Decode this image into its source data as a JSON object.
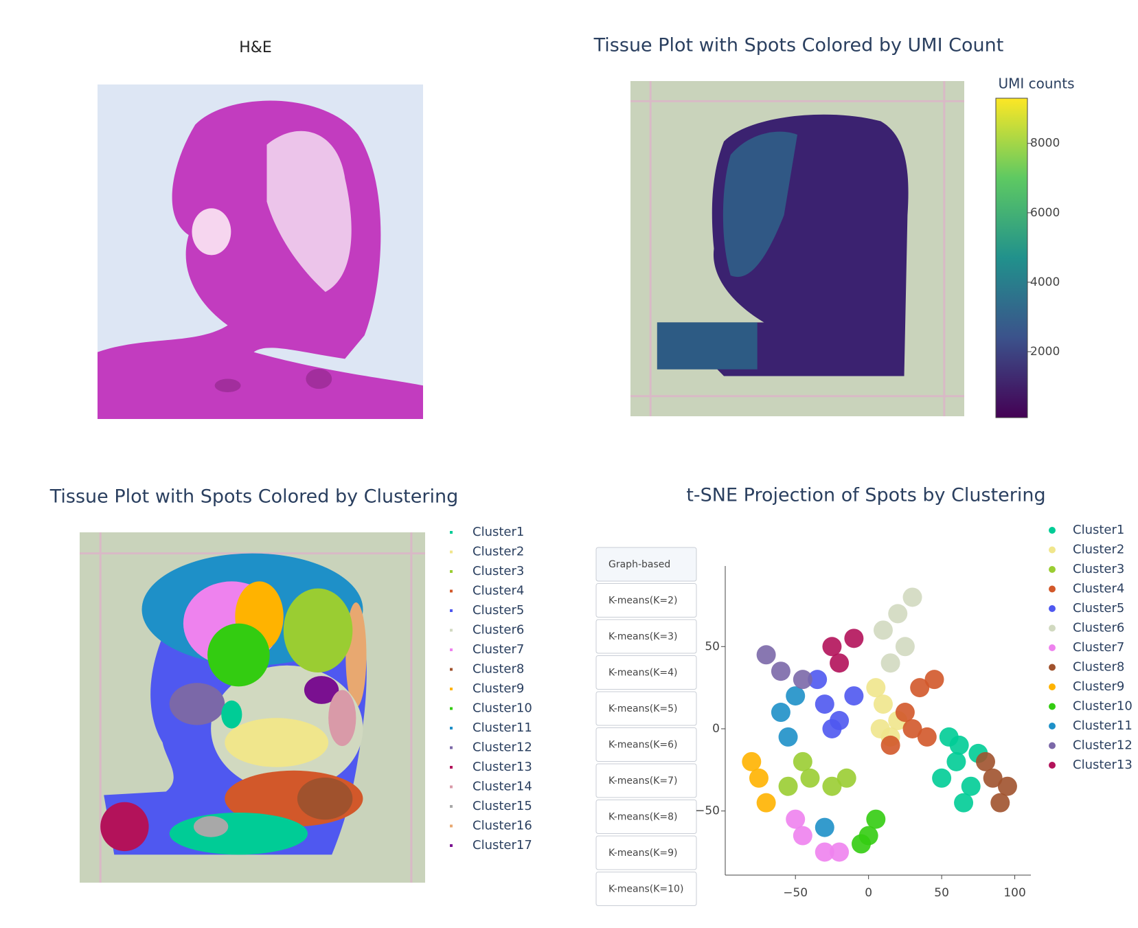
{
  "he_panel": {
    "title": "H&E"
  },
  "umi_panel": {
    "title": "Tissue Plot with Spots Colored by UMI Count",
    "colorbar": {
      "title": "UMI counts",
      "lim": [
        100,
        9300
      ],
      "ticks": [
        2000,
        4000,
        6000,
        8000
      ]
    }
  },
  "cluster_panel": {
    "title": "Tissue Plot with Spots Colored by Clustering",
    "legend": [
      {
        "name": "Cluster1",
        "color": "#00cc96"
      },
      {
        "name": "Cluster2",
        "color": "#f0e68c"
      },
      {
        "name": "Cluster3",
        "color": "#9acd32"
      },
      {
        "name": "Cluster4",
        "color": "#d2582a"
      },
      {
        "name": "Cluster5",
        "color": "#4f58f0"
      },
      {
        "name": "Cluster6",
        "color": "#d1d9c0"
      },
      {
        "name": "Cluster7",
        "color": "#ee82ee"
      },
      {
        "name": "Cluster8",
        "color": "#a0522d"
      },
      {
        "name": "Cluster9",
        "color": "#ffb300"
      },
      {
        "name": "Cluster10",
        "color": "#33cc11"
      },
      {
        "name": "Cluster11",
        "color": "#1e90c8"
      },
      {
        "name": "Cluster12",
        "color": "#7b68a8"
      },
      {
        "name": "Cluster13",
        "color": "#b3125a"
      },
      {
        "name": "Cluster14",
        "color": "#d99aa8"
      },
      {
        "name": "Cluster15",
        "color": "#a8a8a8"
      },
      {
        "name": "Cluster16",
        "color": "#e8a870"
      },
      {
        "name": "Cluster17",
        "color": "#7a1090"
      }
    ]
  },
  "tsne_panel": {
    "title": "t-SNE Projection of Spots by Clustering",
    "buttons": [
      "Graph-based",
      "K-means(K=2)",
      "K-means(K=3)",
      "K-means(K=4)",
      "K-means(K=5)",
      "K-means(K=6)",
      "K-means(K=7)",
      "K-means(K=8)",
      "K-means(K=9)",
      "K-means(K=10)"
    ],
    "chart": {
      "type": "scatter",
      "xlim": [
        -98,
        111
      ],
      "ylim": [
        -89,
        99
      ],
      "xticks": [
        {
          "value": -50,
          "label": "−50"
        },
        0,
        50,
        100
      ],
      "yticks": [
        {
          "value": -50,
          "label": "−50"
        },
        0,
        50
      ],
      "series": [
        {
          "name": "Cluster1",
          "color": "#00cc96",
          "x": [
            60,
            70,
            55,
            75,
            65,
            50,
            62
          ],
          "y": [
            -20,
            -35,
            -5,
            -15,
            -45,
            -30,
            -10
          ]
        },
        {
          "name": "Cluster2",
          "color": "#f0e68c",
          "x": [
            10,
            20,
            5,
            15,
            8
          ],
          "y": [
            15,
            5,
            25,
            -5,
            0
          ]
        },
        {
          "name": "Cluster3",
          "color": "#9acd32",
          "x": [
            -40,
            -25,
            -55,
            -15,
            -45
          ],
          "y": [
            -30,
            -35,
            -35,
            -30,
            -20
          ]
        },
        {
          "name": "Cluster4",
          "color": "#d2582a",
          "x": [
            25,
            35,
            40,
            15,
            45,
            30
          ],
          "y": [
            10,
            25,
            -5,
            -10,
            30,
            0
          ]
        },
        {
          "name": "Cluster5",
          "color": "#4f58f0",
          "x": [
            -30,
            -20,
            -35,
            -10,
            -25
          ],
          "y": [
            15,
            5,
            30,
            20,
            0
          ]
        },
        {
          "name": "Cluster6",
          "color": "#d1d9c0",
          "x": [
            20,
            25,
            10,
            30,
            15
          ],
          "y": [
            70,
            50,
            60,
            80,
            40
          ]
        },
        {
          "name": "Cluster7",
          "color": "#ee82ee",
          "x": [
            -45,
            -30,
            -50,
            -20
          ],
          "y": [
            -65,
            -75,
            -55,
            -75
          ]
        },
        {
          "name": "Cluster8",
          "color": "#a0522d",
          "x": [
            85,
            90,
            80,
            95
          ],
          "y": [
            -30,
            -45,
            -20,
            -35
          ]
        },
        {
          "name": "Cluster9",
          "color": "#ffb300",
          "x": [
            -75,
            -70,
            -80
          ],
          "y": [
            -30,
            -45,
            -20
          ]
        },
        {
          "name": "Cluster10",
          "color": "#33cc11",
          "x": [
            0,
            5,
            -5
          ],
          "y": [
            -65,
            -55,
            -70
          ]
        },
        {
          "name": "Cluster11",
          "color": "#1e90c8",
          "x": [
            -60,
            -55,
            -50,
            -30
          ],
          "y": [
            10,
            -5,
            20,
            -60
          ]
        },
        {
          "name": "Cluster12",
          "color": "#7b68a8",
          "x": [
            -70,
            -60,
            -45
          ],
          "y": [
            45,
            35,
            30
          ]
        },
        {
          "name": "Cluster13",
          "color": "#b3125a",
          "x": [
            -25,
            -10,
            -20
          ],
          "y": [
            50,
            55,
            40
          ]
        }
      ]
    }
  }
}
